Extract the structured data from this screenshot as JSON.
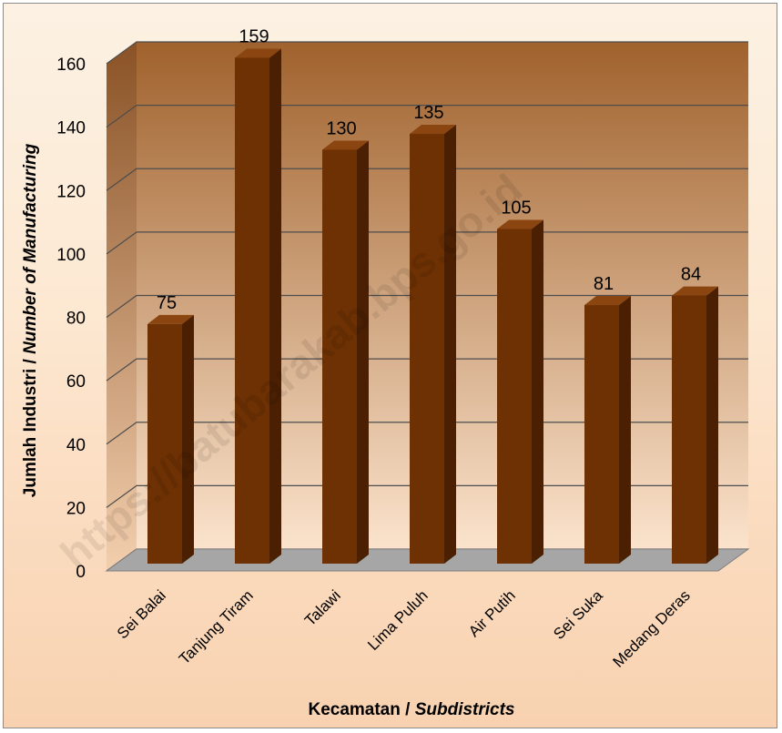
{
  "chart_data": {
    "type": "bar",
    "categories": [
      "Sei Balai",
      "Tanjung Tiram",
      "Talawi",
      "Lima Puluh",
      "Air Putih",
      "Sei Suka",
      "Medang Deras"
    ],
    "values": [
      75,
      159,
      130,
      135,
      105,
      81,
      84
    ],
    "data_labels": [
      "75",
      "159",
      "130",
      "135",
      "105",
      "81",
      "84"
    ],
    "title": "",
    "xlabel": {
      "main": "Kecamatan / ",
      "italic": "Subdistricts"
    },
    "ylabel": {
      "main": "Jumlah Industri / ",
      "italic": "Number of Manufacturing"
    },
    "ylim": [
      0,
      160
    ],
    "yticks": [
      "0",
      "20",
      "40",
      "60",
      "80",
      "100",
      "120",
      "140",
      "160"
    ],
    "grid": true,
    "legend": "none",
    "style": "3d-column",
    "colors": {
      "bar_front": "#6e3103",
      "bar_side": "#4a1f02",
      "bar_top": "#8a4510",
      "wall_top": "#a0622d",
      "wall_bottom": "#fbe3cc",
      "floor": "#a6a6a6",
      "gridline": "#4d4d4d"
    }
  },
  "watermark": "https://batubarakab.bps.go.id"
}
